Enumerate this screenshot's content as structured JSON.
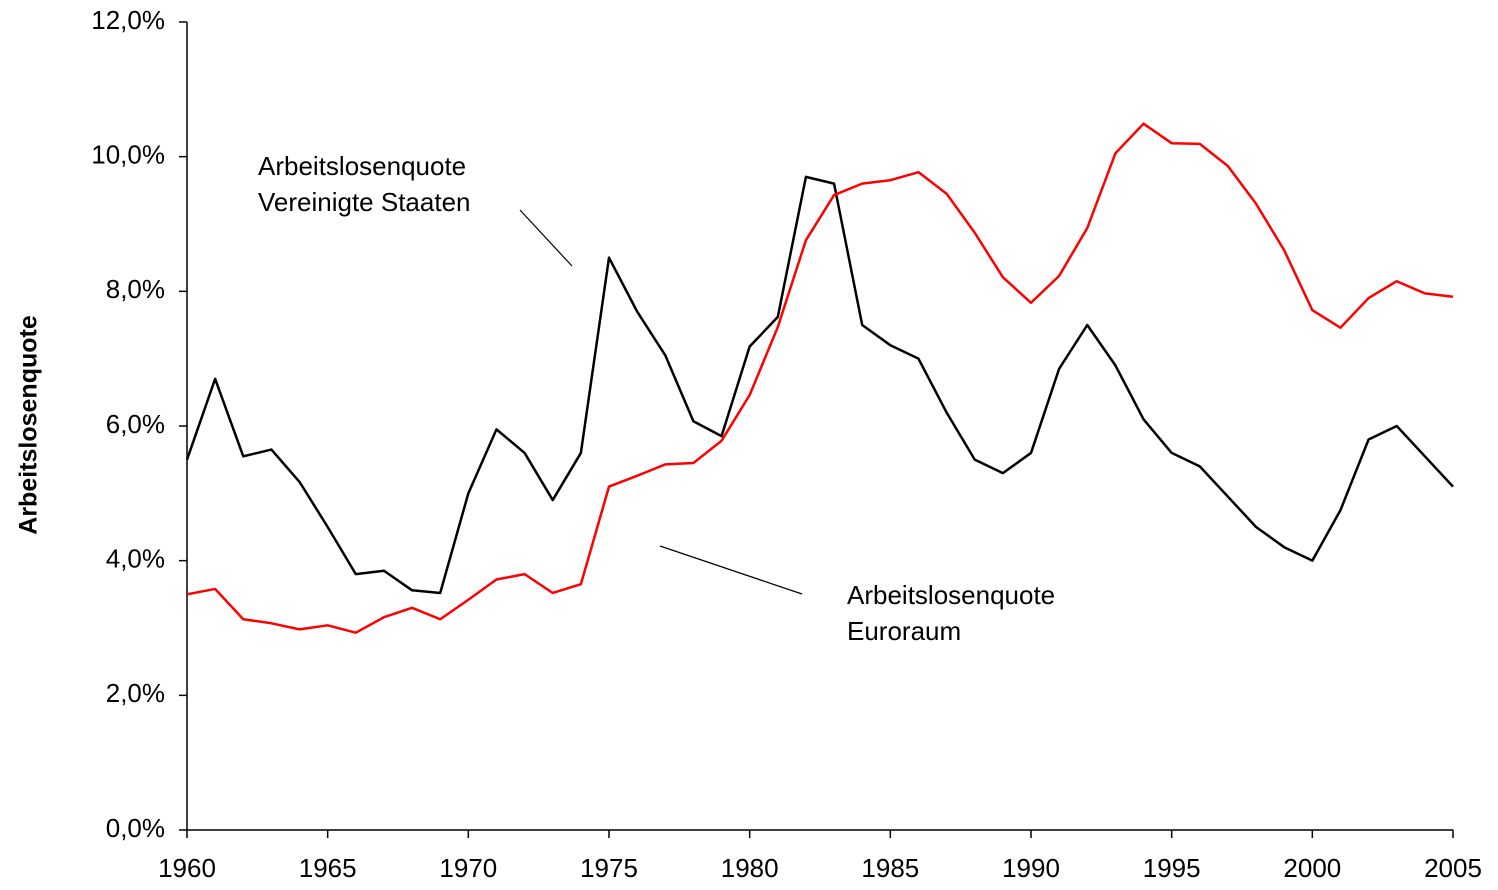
{
  "chart_data": {
    "type": "line",
    "ylabel": "Arbeitslosenquote",
    "x": [
      1960,
      1961,
      1962,
      1963,
      1964,
      1965,
      1966,
      1967,
      1968,
      1969,
      1970,
      1971,
      1972,
      1973,
      1974,
      1975,
      1976,
      1977,
      1978,
      1979,
      1980,
      1981,
      1982,
      1983,
      1984,
      1985,
      1986,
      1987,
      1988,
      1989,
      1990,
      1991,
      1992,
      1993,
      1994,
      1995,
      1996,
      1997,
      1998,
      1999,
      2000,
      2001,
      2002,
      2003,
      2004,
      2005
    ],
    "series": [
      {
        "color": "#000000",
        "values": [
          5.5,
          6.7,
          5.55,
          5.65,
          5.17,
          4.5,
          3.8,
          3.85,
          3.56,
          3.52,
          5.0,
          5.95,
          5.6,
          4.9,
          5.6,
          8.5,
          7.7,
          7.05,
          6.07,
          5.85,
          7.18,
          7.62,
          9.7,
          9.6,
          7.5,
          7.2,
          7.0,
          6.2,
          5.5,
          5.3,
          5.6,
          6.85,
          7.5,
          6.9,
          6.1,
          5.6,
          5.4,
          4.95,
          4.5,
          4.2,
          4.0,
          4.75,
          5.8,
          6.0,
          5.55,
          5.1
        ]
      },
      {
        "color": "#ff0000",
        "values": [
          3.5,
          3.58,
          3.13,
          3.07,
          2.98,
          3.04,
          2.93,
          3.16,
          3.3,
          3.13,
          3.42,
          3.72,
          3.8,
          3.52,
          3.65,
          5.1,
          5.26,
          5.43,
          5.45,
          5.78,
          6.46,
          7.47,
          8.76,
          9.43,
          9.6,
          9.65,
          9.77,
          9.45,
          8.87,
          8.21,
          7.83,
          8.23,
          8.94,
          10.05,
          10.49,
          10.2,
          10.19,
          9.86,
          9.3,
          8.61,
          7.72,
          7.46,
          7.9,
          8.15,
          7.97,
          7.92
        ]
      }
    ],
    "annotations": [
      {
        "lines": [
          "Arbeitslosenquote",
          "Vereinigte Staaten"
        ]
      },
      {
        "lines": [
          "Arbeitslosenquote",
          "Euroraum"
        ]
      }
    ],
    "xlim": [
      1960,
      2005
    ],
    "xticks": [
      1960,
      1965,
      1970,
      1975,
      1980,
      1985,
      1990,
      1995,
      2000,
      2005
    ],
    "ylim": [
      0,
      12
    ],
    "yticks": [
      {
        "value": 0,
        "label": "0,0%"
      },
      {
        "value": 2,
        "label": "2,0%"
      },
      {
        "value": 4,
        "label": "4,0%"
      },
      {
        "value": 6,
        "label": "6,0%"
      },
      {
        "value": 8,
        "label": "8,0%"
      },
      {
        "value": 10,
        "label": "10,0%"
      },
      {
        "value": 12,
        "label": "12,0%"
      }
    ]
  }
}
